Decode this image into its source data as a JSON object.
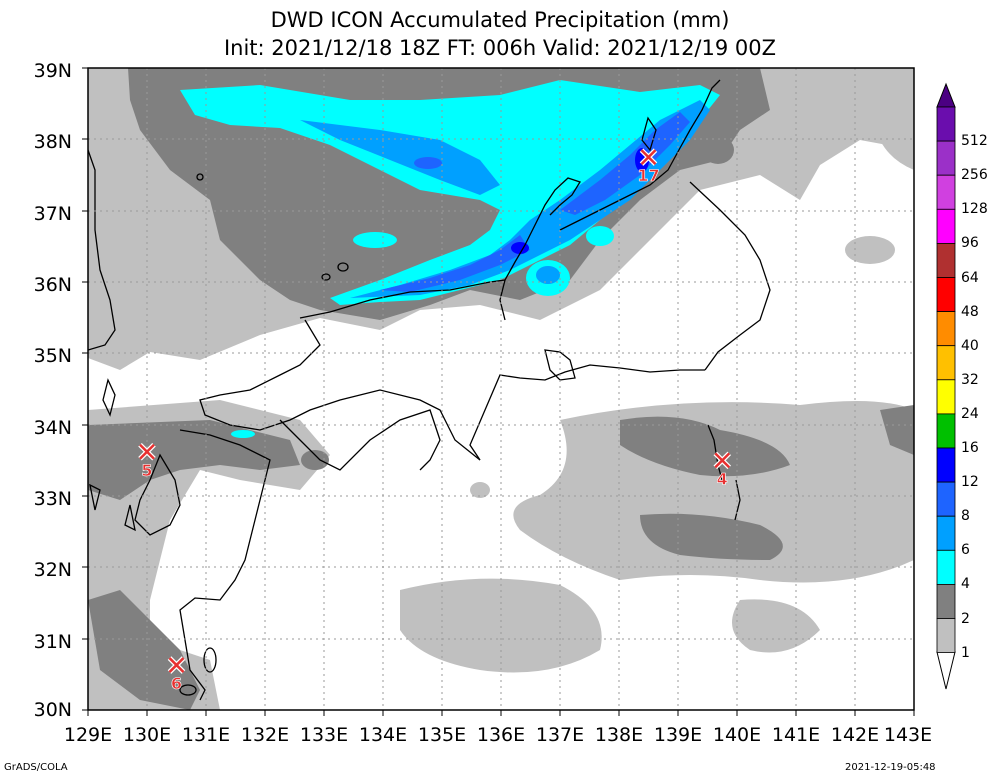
{
  "title": {
    "line1": "DWD ICON Accumulated Precipitation (mm)",
    "line2": "Init: 2021/12/18 18Z  FT: 006h  Valid: 2021/12/19 00Z"
  },
  "axes": {
    "lat_labels": [
      "39N",
      "38N",
      "37N",
      "36N",
      "35N",
      "34N",
      "33N",
      "32N",
      "31N",
      "30N"
    ],
    "lon_labels": [
      "129E",
      "130E",
      "131E",
      "132E",
      "133E",
      "134E",
      "135E",
      "136E",
      "137E",
      "138E",
      "139E",
      "140E",
      "141E",
      "142E",
      "143E"
    ],
    "lon_range": [
      129,
      143
    ],
    "lat_range": [
      30,
      39
    ],
    "grid": true
  },
  "colorbar": {
    "levels": [
      "512",
      "256",
      "128",
      "96",
      "64",
      "48",
      "40",
      "32",
      "24",
      "16",
      "12",
      "8",
      "6",
      "4",
      "2",
      "1"
    ],
    "colors": [
      "#6a0dad",
      "#9b30c8",
      "#d040e0",
      "#ff00ff",
      "#b03030",
      "#ff0000",
      "#ff8c00",
      "#ffc000",
      "#ffff00",
      "#00c000",
      "#0000ff",
      "#1e64ff",
      "#00a0ff",
      "#00ffff",
      "#808080",
      "#c0c0c0"
    ]
  },
  "stations": [
    {
      "label": "17",
      "lon": 138.5,
      "lat": 37.75
    },
    {
      "label": "5",
      "lon": 130.0,
      "lat": 33.62
    },
    {
      "label": "4",
      "lon": 139.75,
      "lat": 33.5
    },
    {
      "label": "6",
      "lon": 130.5,
      "lat": 30.63
    }
  ],
  "footer": {
    "left": "GrADS/COLA",
    "right": "2021-12-19-05:48"
  }
}
